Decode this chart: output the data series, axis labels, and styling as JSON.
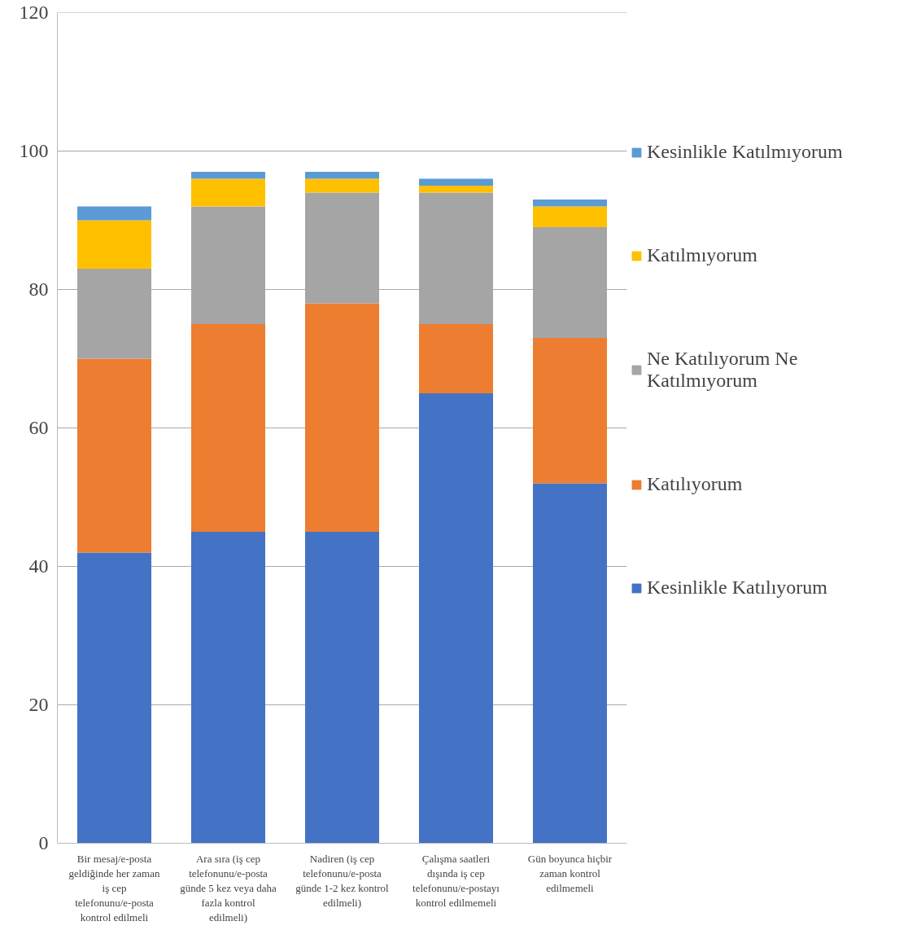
{
  "chart_data": {
    "type": "bar",
    "stacked": true,
    "categories": [
      "Bir mesaj/e-posta geldiğinde her zaman iş cep telefonunu/e-posta kontrol edilmeli",
      "Ara sıra (iş cep telefonunu/e-posta günde 5 kez veya daha fazla kontrol edilmeli)",
      "Nadiren (iş cep telefonunu/e-posta günde 1-2 kez kontrol edilmeli)",
      "Çalışma saatleri dışında iş cep telefonunu/e-postayı kontrol edilmemeli",
      "Gün boyunca hiçbir zaman kontrol edilmemeli"
    ],
    "series": [
      {
        "name": "Kesinlikle Katılıyorum",
        "color": "#4472c4",
        "values": [
          42,
          45,
          45,
          65,
          52
        ]
      },
      {
        "name": "Katılıyorum",
        "color": "#ed7d31",
        "values": [
          28,
          30,
          33,
          10,
          21
        ]
      },
      {
        "name": "Ne Katılıyorum Ne Katılmıyorum",
        "color": "#a5a5a5",
        "values": [
          13,
          17,
          16,
          19,
          16
        ]
      },
      {
        "name": "Katılmıyorum",
        "color": "#ffc000",
        "values": [
          7,
          4,
          2,
          1,
          3
        ]
      },
      {
        "name": "Kesinlikle Katılmıyorum",
        "color": "#5b9bd5",
        "values": [
          2,
          1,
          1,
          1,
          1
        ]
      }
    ],
    "ylim": [
      0,
      120
    ],
    "yticks": [
      0,
      20,
      40,
      60,
      80,
      100,
      120
    ],
    "grid": "y",
    "legend": "right"
  }
}
